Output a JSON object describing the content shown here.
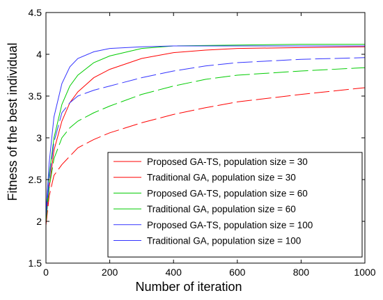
{
  "chart_data": {
    "type": "line",
    "title": "",
    "xlabel": "Number of iteration",
    "ylabel": "Fitness of the best individual",
    "xlim": [
      0,
      1000
    ],
    "ylim": [
      1.5,
      4.5
    ],
    "xticks": [
      0,
      200,
      400,
      600,
      800,
      1000
    ],
    "yticks": [
      1.5,
      2,
      2.5,
      3,
      3.5,
      4,
      4.5
    ],
    "xtick_labels": [
      "0",
      "200",
      "400",
      "600",
      "800",
      "1000"
    ],
    "ytick_labels": [
      "1.5",
      "2",
      "2.5",
      "3",
      "3.5",
      "4",
      "4.5"
    ],
    "grid": false,
    "legend_position": "bottom-right",
    "series": [
      {
        "name": "Proposed GA-TS, population size = 30",
        "color": "#ff0000",
        "dash": "solid",
        "points": [
          [
            0,
            2.0
          ],
          [
            10,
            2.4
          ],
          [
            25,
            2.85
          ],
          [
            50,
            3.2
          ],
          [
            75,
            3.42
          ],
          [
            100,
            3.55
          ],
          [
            150,
            3.72
          ],
          [
            200,
            3.82
          ],
          [
            300,
            3.95
          ],
          [
            400,
            4.02
          ],
          [
            500,
            4.05
          ],
          [
            600,
            4.07
          ],
          [
            800,
            4.08
          ],
          [
            1000,
            4.09
          ]
        ]
      },
      {
        "name": "Traditional GA, population size = 30",
        "color": "#ff0000",
        "dash": "dashed",
        "points": [
          [
            0,
            1.95
          ],
          [
            10,
            2.3
          ],
          [
            25,
            2.55
          ],
          [
            50,
            2.68
          ],
          [
            75,
            2.78
          ],
          [
            100,
            2.88
          ],
          [
            150,
            2.98
          ],
          [
            200,
            3.06
          ],
          [
            300,
            3.18
          ],
          [
            400,
            3.28
          ],
          [
            500,
            3.36
          ],
          [
            600,
            3.43
          ],
          [
            800,
            3.52
          ],
          [
            1000,
            3.6
          ]
        ]
      },
      {
        "name": "Proposed GA-TS, population size = 60",
        "color": "#00cc00",
        "dash": "solid",
        "points": [
          [
            0,
            2.0
          ],
          [
            10,
            2.55
          ],
          [
            25,
            3.0
          ],
          [
            50,
            3.4
          ],
          [
            75,
            3.62
          ],
          [
            100,
            3.75
          ],
          [
            150,
            3.9
          ],
          [
            200,
            3.98
          ],
          [
            300,
            4.07
          ],
          [
            400,
            4.1
          ],
          [
            600,
            4.11
          ],
          [
            800,
            4.12
          ],
          [
            1000,
            4.12
          ]
        ]
      },
      {
        "name": "Traditional GA, population size = 60",
        "color": "#00cc00",
        "dash": "dashed",
        "points": [
          [
            0,
            2.0
          ],
          [
            10,
            2.4
          ],
          [
            25,
            2.75
          ],
          [
            50,
            3.0
          ],
          [
            75,
            3.12
          ],
          [
            100,
            3.2
          ],
          [
            150,
            3.3
          ],
          [
            200,
            3.38
          ],
          [
            300,
            3.52
          ],
          [
            400,
            3.62
          ],
          [
            500,
            3.7
          ],
          [
            600,
            3.75
          ],
          [
            800,
            3.8
          ],
          [
            1000,
            3.84
          ]
        ]
      },
      {
        "name": "Proposed GA-TS, population size = 100",
        "color": "#3333ff",
        "dash": "solid",
        "points": [
          [
            0,
            2.1
          ],
          [
            10,
            2.7
          ],
          [
            25,
            3.25
          ],
          [
            50,
            3.65
          ],
          [
            75,
            3.85
          ],
          [
            100,
            3.95
          ],
          [
            150,
            4.03
          ],
          [
            200,
            4.07
          ],
          [
            300,
            4.09
          ],
          [
            400,
            4.1
          ],
          [
            600,
            4.1
          ],
          [
            800,
            4.1
          ],
          [
            1000,
            4.1
          ]
        ]
      },
      {
        "name": "Traditional GA, population size = 100",
        "color": "#3333ff",
        "dash": "dashed",
        "points": [
          [
            0,
            2.05
          ],
          [
            10,
            2.5
          ],
          [
            25,
            2.95
          ],
          [
            50,
            3.3
          ],
          [
            75,
            3.42
          ],
          [
            100,
            3.5
          ],
          [
            150,
            3.57
          ],
          [
            200,
            3.62
          ],
          [
            300,
            3.72
          ],
          [
            400,
            3.8
          ],
          [
            500,
            3.86
          ],
          [
            600,
            3.9
          ],
          [
            800,
            3.94
          ],
          [
            1000,
            3.96
          ]
        ]
      }
    ]
  }
}
